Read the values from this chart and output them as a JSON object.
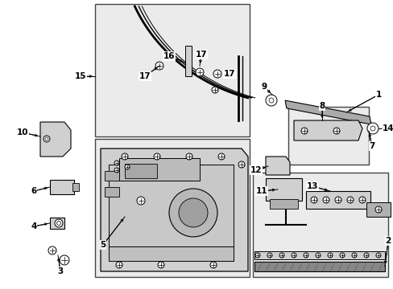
{
  "background_color": "#ffffff",
  "figure_size": [
    4.89,
    3.6
  ],
  "dpi": 100,
  "label_fontsize": 7.5,
  "line_color": "#000000"
}
